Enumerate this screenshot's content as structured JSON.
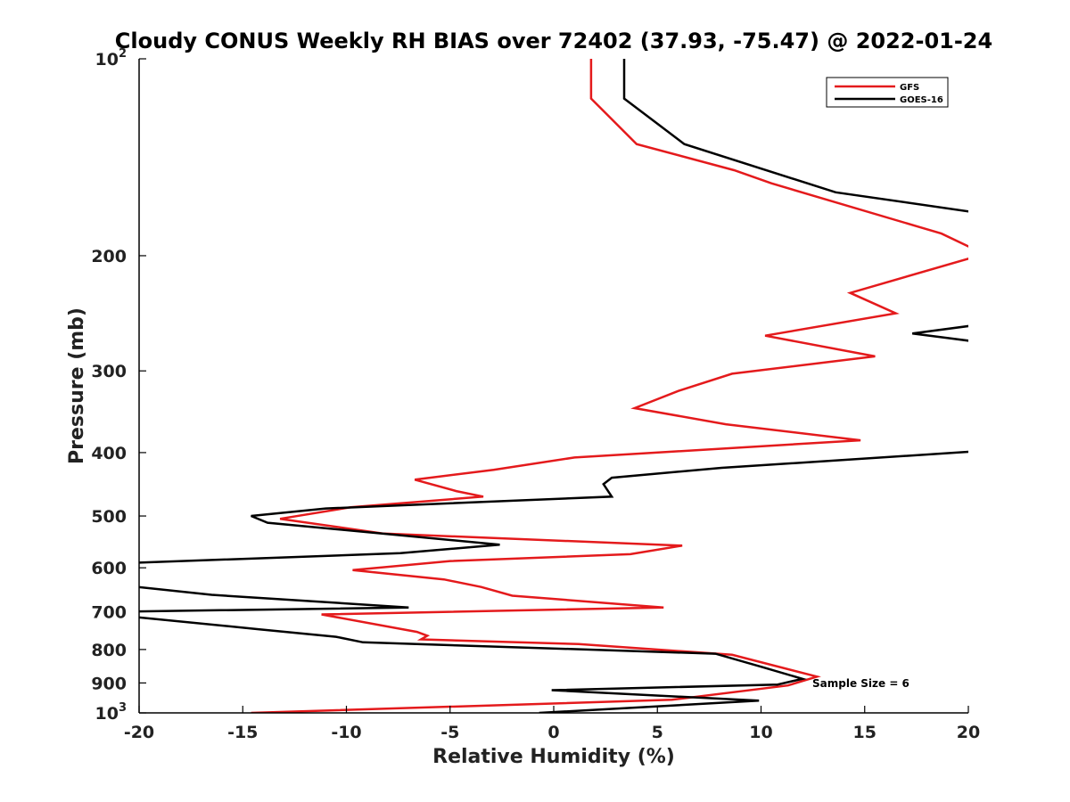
{
  "chart_data": {
    "type": "line",
    "title": "Cloudy CONUS Weekly RH BIAS over 72402 (37.93, -75.47) @ 2022-01-24",
    "xlabel": "Relative Humidity (%)",
    "ylabel": "Pressure (mb)",
    "xlim": [
      -20,
      20
    ],
    "ylim": [
      1000,
      100
    ],
    "y_scale": "log-reversed",
    "grid": false,
    "x_ticks": [
      "-20",
      "-15",
      "-10",
      "-5",
      "0",
      "5",
      "10",
      "15",
      "20"
    ],
    "x_tick_values": [
      -20,
      -15,
      -10,
      -5,
      0,
      5,
      10,
      15,
      20
    ],
    "y_ticks": [
      {
        "value": 100,
        "label": "10",
        "sup": "2"
      },
      {
        "value": 200,
        "label": "200",
        "sup": ""
      },
      {
        "value": 300,
        "label": "300",
        "sup": ""
      },
      {
        "value": 400,
        "label": "400",
        "sup": ""
      },
      {
        "value": 500,
        "label": "500",
        "sup": ""
      },
      {
        "value": 600,
        "label": "600",
        "sup": ""
      },
      {
        "value": 700,
        "label": "700",
        "sup": ""
      },
      {
        "value": 800,
        "label": "800",
        "sup": ""
      },
      {
        "value": 900,
        "label": "900",
        "sup": ""
      },
      {
        "value": 1000,
        "label": "10",
        "sup": "3"
      }
    ],
    "legend_position": "top-right",
    "annotation": "Sample Size = 6",
    "series": [
      {
        "name": "GFS",
        "color": "#e41a1c",
        "points": [
          [
            1.8,
            100
          ],
          [
            1.8,
            115
          ],
          [
            4.0,
            135
          ],
          [
            8.7,
            148
          ],
          [
            10.5,
            155
          ],
          [
            18.7,
            185
          ],
          [
            20.5,
            197
          ],
          [
            20.5,
            200
          ],
          [
            14.3,
            228
          ],
          [
            16.5,
            245
          ],
          [
            10.2,
            265
          ],
          [
            15.5,
            285
          ],
          [
            8.6,
            303
          ],
          [
            6.0,
            322
          ],
          [
            3.9,
            342
          ],
          [
            8.3,
            362
          ],
          [
            14.8,
            383
          ],
          [
            1.0,
            407
          ],
          [
            -2.9,
            425
          ],
          [
            -6.7,
            440
          ],
          [
            -4.7,
            458
          ],
          [
            -3.4,
            467
          ],
          [
            -9.8,
            485
          ],
          [
            -13.2,
            505
          ],
          [
            -8.2,
            532
          ],
          [
            6.2,
            555
          ],
          [
            3.7,
            572
          ],
          [
            -5.0,
            586
          ],
          [
            -9.7,
            605
          ],
          [
            -5.3,
            625
          ],
          [
            -3.5,
            642
          ],
          [
            -2.0,
            662
          ],
          [
            5.3,
            690
          ],
          [
            -11.2,
            707
          ],
          [
            -6.6,
            752
          ],
          [
            -6.1,
            762
          ],
          [
            -6.4,
            772
          ],
          [
            1.2,
            785
          ],
          [
            8.6,
            815
          ],
          [
            12.7,
            880
          ],
          [
            11.3,
            908
          ],
          [
            5.7,
            955
          ],
          [
            -14.6,
            1000
          ]
        ]
      },
      {
        "name": "GOES-16",
        "color": "#000000",
        "points": [
          [
            3.4,
            100
          ],
          [
            3.4,
            115
          ],
          [
            6.3,
            135
          ],
          [
            13.6,
            160
          ],
          [
            20.5,
            172
          ],
          [
            20.5,
            255
          ],
          [
            17.3,
            263
          ],
          [
            20.5,
            271
          ],
          [
            20.5,
            398
          ],
          [
            8.1,
            422
          ],
          [
            2.8,
            437
          ],
          [
            2.4,
            447
          ],
          [
            2.8,
            467
          ],
          [
            -11.0,
            487
          ],
          [
            -14.6,
            500
          ],
          [
            -13.8,
            512
          ],
          [
            -2.6,
            553
          ],
          [
            -7.4,
            570
          ],
          [
            -20.5,
            590
          ],
          [
            -20.5,
            640
          ],
          [
            -16.5,
            660
          ],
          [
            -7.0,
            690
          ],
          [
            -20.5,
            700
          ],
          [
            -20.5,
            712
          ],
          [
            -14.2,
            745
          ],
          [
            -10.5,
            765
          ],
          [
            -9.2,
            780
          ],
          [
            7.8,
            812
          ],
          [
            10.0,
            850
          ],
          [
            12.0,
            887
          ],
          [
            10.8,
            905
          ],
          [
            -0.1,
            923
          ],
          [
            9.9,
            958
          ],
          [
            -0.7,
            1000
          ]
        ]
      }
    ]
  }
}
